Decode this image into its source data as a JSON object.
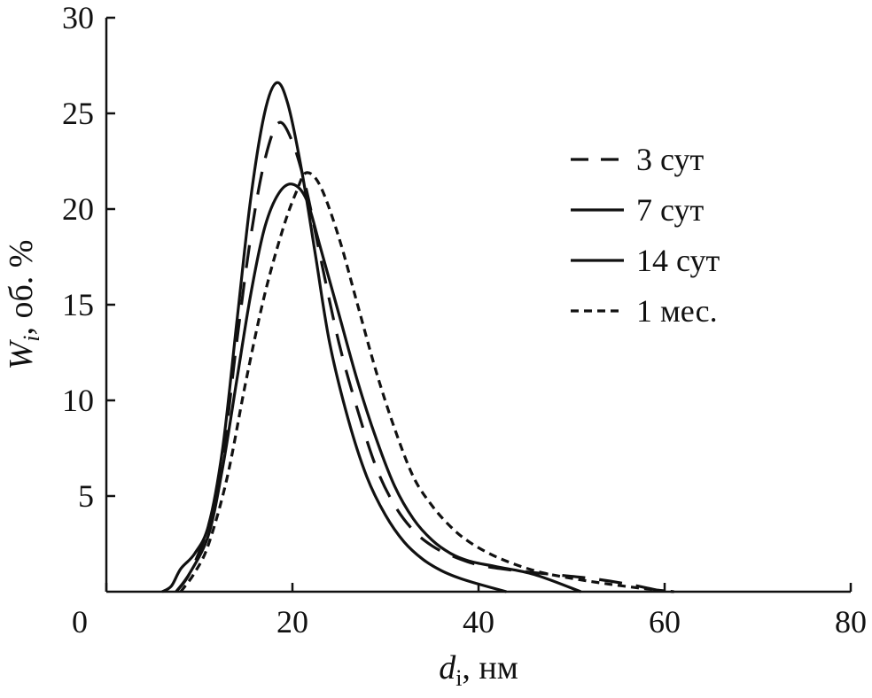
{
  "chart_data": {
    "type": "line",
    "xlim": [
      0,
      80
    ],
    "ylim": [
      0,
      30
    ],
    "x_ticks": [
      0,
      20,
      40,
      60,
      80
    ],
    "y_ticks": [
      5,
      10,
      15,
      20,
      25,
      30
    ],
    "x_tick_labels": [
      "0",
      "20",
      "40",
      "60",
      "80"
    ],
    "y_tick_labels": [
      "5",
      "10",
      "15",
      "20",
      "25",
      "30"
    ],
    "xlabel_main": "d",
    "xlabel_sub": "i",
    "xlabel_unit": ", нм",
    "ylabel_main": "W",
    "ylabel_sub": "i",
    "ylabel_unit": ", об. %",
    "legend_position": "top-right",
    "series": [
      {
        "name": "3 сут",
        "style": "dashed-long",
        "points": [
          [
            7.5,
            0
          ],
          [
            9,
            1
          ],
          [
            11,
            3.5
          ],
          [
            12.5,
            7
          ],
          [
            14,
            13
          ],
          [
            15.5,
            18.5
          ],
          [
            17,
            22.5
          ],
          [
            18.5,
            24.5
          ],
          [
            20,
            23.5
          ],
          [
            21.5,
            21
          ],
          [
            23,
            17.5
          ],
          [
            25,
            13
          ],
          [
            27,
            9.5
          ],
          [
            29,
            6.5
          ],
          [
            31,
            4.5
          ],
          [
            33,
            3.2
          ],
          [
            35,
            2.4
          ],
          [
            37,
            1.9
          ],
          [
            40,
            1.4
          ],
          [
            44,
            1.1
          ],
          [
            48,
            0.9
          ],
          [
            52,
            0.7
          ],
          [
            56,
            0.4
          ],
          [
            60,
            0
          ]
        ]
      },
      {
        "name": "7 сут",
        "style": "solid",
        "points": [
          [
            6,
            0
          ],
          [
            7,
            0.3
          ],
          [
            8,
            1.2
          ],
          [
            9.5,
            2
          ],
          [
            11,
            3.5
          ],
          [
            12.5,
            7.5
          ],
          [
            14,
            14
          ],
          [
            15.5,
            20.5
          ],
          [
            17,
            25
          ],
          [
            18.3,
            26.6
          ],
          [
            19.5,
            25.5
          ],
          [
            21,
            22
          ],
          [
            22.5,
            17.5
          ],
          [
            24,
            13
          ],
          [
            26,
            9
          ],
          [
            28,
            6
          ],
          [
            30,
            4
          ],
          [
            32,
            2.6
          ],
          [
            34,
            1.7
          ],
          [
            36,
            1.1
          ],
          [
            38,
            0.7
          ],
          [
            40,
            0.4
          ],
          [
            43,
            0
          ]
        ]
      },
      {
        "name": "14 сут",
        "style": "solid",
        "points": [
          [
            7.5,
            0
          ],
          [
            9,
            1
          ],
          [
            11,
            3
          ],
          [
            12.5,
            6.5
          ],
          [
            14,
            11
          ],
          [
            15.5,
            15.5
          ],
          [
            17,
            19
          ],
          [
            18.5,
            20.8
          ],
          [
            20,
            21.3
          ],
          [
            21.5,
            20.5
          ],
          [
            23,
            18
          ],
          [
            25,
            14.5
          ],
          [
            27,
            11
          ],
          [
            29,
            8
          ],
          [
            31,
            5.5
          ],
          [
            33,
            3.8
          ],
          [
            35,
            2.7
          ],
          [
            37,
            2
          ],
          [
            39,
            1.6
          ],
          [
            42,
            1.3
          ],
          [
            46,
            0.9
          ],
          [
            51,
            0
          ]
        ]
      },
      {
        "name": "1 мес.",
        "style": "dashed-short",
        "points": [
          [
            8,
            0
          ],
          [
            9.5,
            1
          ],
          [
            11,
            2.5
          ],
          [
            13,
            6
          ],
          [
            15,
            11
          ],
          [
            17,
            15.5
          ],
          [
            19,
            19
          ],
          [
            20.5,
            21
          ],
          [
            21.5,
            21.9
          ],
          [
            23,
            21.2
          ],
          [
            25,
            18.5
          ],
          [
            27,
            15
          ],
          [
            29,
            11.5
          ],
          [
            31,
            8.5
          ],
          [
            33,
            6
          ],
          [
            35,
            4.5
          ],
          [
            37,
            3.4
          ],
          [
            39,
            2.6
          ],
          [
            42,
            1.8
          ],
          [
            46,
            1.1
          ],
          [
            50,
            0.7
          ],
          [
            54,
            0.4
          ],
          [
            58,
            0.15
          ],
          [
            61,
            0
          ]
        ]
      }
    ]
  }
}
